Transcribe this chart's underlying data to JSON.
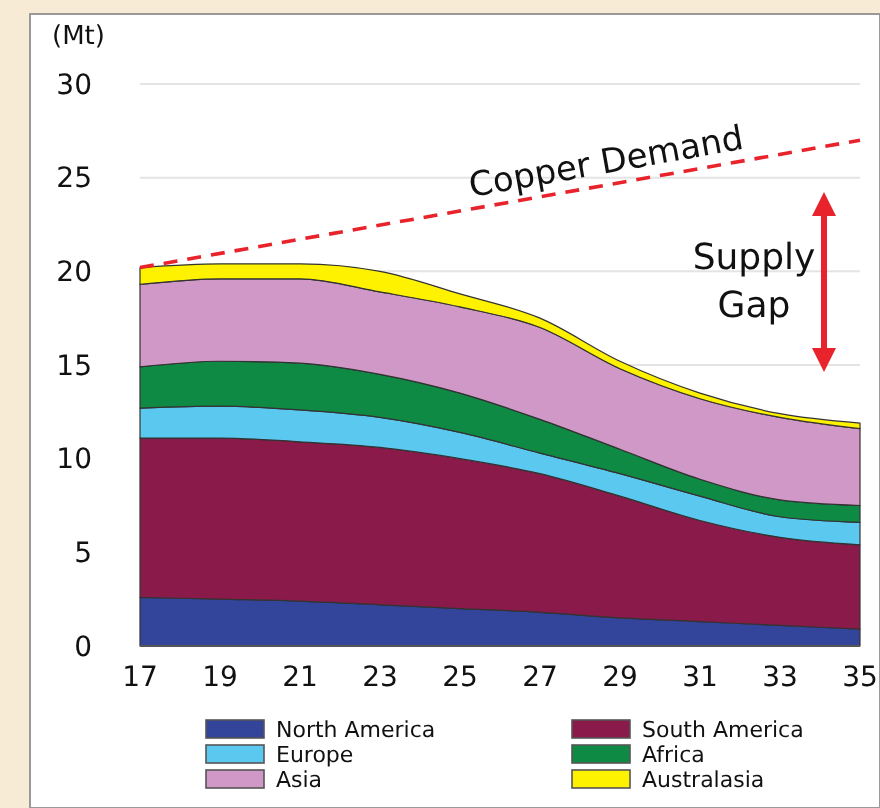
{
  "chart_data": {
    "type": "area",
    "ylabel": "(Mt)",
    "x": [
      17,
      19,
      21,
      23,
      25,
      27,
      29,
      31,
      33,
      35
    ],
    "xlim": [
      17,
      35
    ],
    "xticks": [
      17,
      19,
      21,
      23,
      25,
      27,
      29,
      31,
      33,
      35
    ],
    "ylim": [
      0,
      30
    ],
    "yticks": [
      0,
      5,
      10,
      15,
      20,
      25,
      30
    ],
    "grid": "y",
    "legend": "bottom",
    "stacked": true,
    "series": [
      {
        "name": "North America",
        "color": "#33449b",
        "values": [
          2.6,
          2.5,
          2.4,
          2.2,
          2.0,
          1.8,
          1.5,
          1.3,
          1.1,
          0.9
        ]
      },
      {
        "name": "South America",
        "color": "#8a1a4a",
        "values": [
          8.5,
          8.6,
          8.5,
          8.4,
          8.0,
          7.4,
          6.5,
          5.4,
          4.7,
          4.5
        ]
      },
      {
        "name": "Europe",
        "color": "#5bc8f0",
        "values": [
          1.6,
          1.7,
          1.7,
          1.6,
          1.4,
          1.1,
          1.2,
          1.3,
          1.1,
          1.2
        ]
      },
      {
        "name": "Africa",
        "color": "#0f8a44",
        "values": [
          2.2,
          2.4,
          2.5,
          2.3,
          2.1,
          1.8,
          1.3,
          0.9,
          0.9,
          0.9
        ]
      },
      {
        "name": "Asia",
        "color": "#cf98c6",
        "values": [
          4.4,
          4.4,
          4.5,
          4.4,
          4.6,
          4.9,
          4.3,
          4.3,
          4.4,
          4.1
        ]
      },
      {
        "name": "Australasia",
        "color": "#fff200",
        "values": [
          0.9,
          0.8,
          0.8,
          1.1,
          0.7,
          0.5,
          0.4,
          0.3,
          0.2,
          0.3
        ]
      },
      {
        "name": "Copper Demand",
        "type": "line",
        "color": "#e8232b",
        "line_style": "dashed",
        "x": [
          17,
          35
        ],
        "values": [
          20.2,
          27
        ]
      }
    ],
    "annotations": [
      "Supply Gap"
    ]
  }
}
